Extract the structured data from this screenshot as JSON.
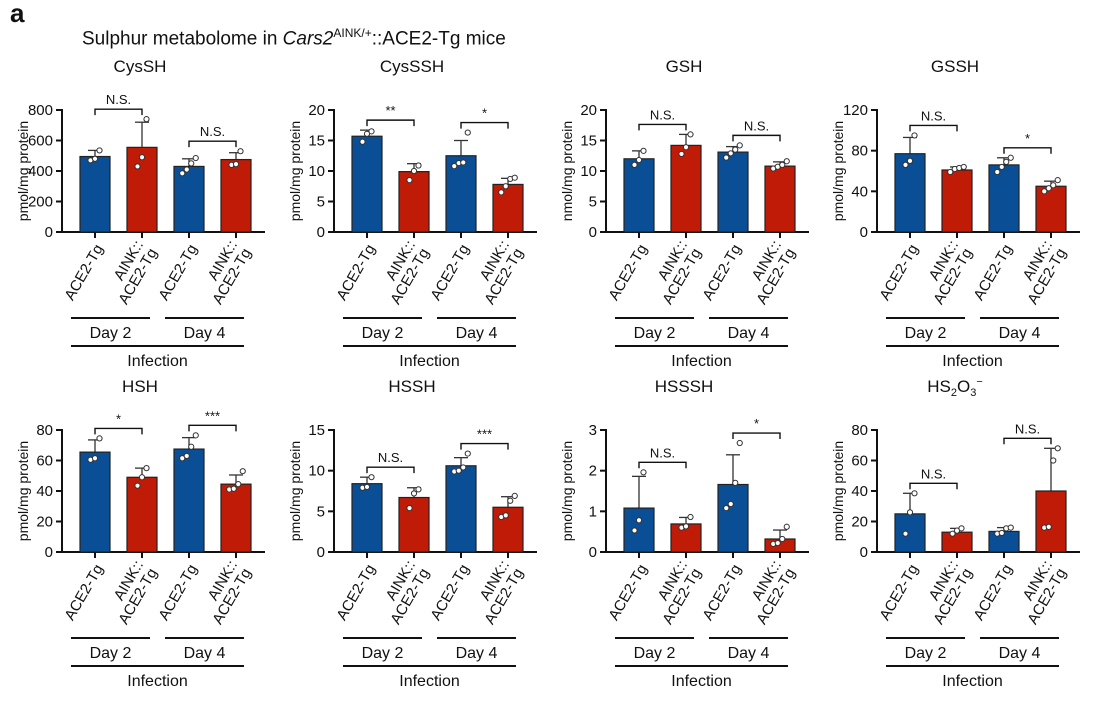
{
  "panel_letter": "a",
  "title": {
    "prefix": "Sulphur metabolome in ",
    "gene": "Cars2",
    "superscript": "AINK/+",
    "suffix": "::ACE2-Tg mice"
  },
  "colors": {
    "control": "#0a4f96",
    "mutant": "#c01b07",
    "axis": "#111111",
    "errorbar": "#333333"
  },
  "chart_data": [
    {
      "type": "bar",
      "title": "CysSH",
      "ylabel": "pmol/mg protein",
      "ylim": [
        0,
        800
      ],
      "yticks": [
        0,
        200,
        400,
        600,
        800
      ],
      "categories": [
        "ACE2-Tg",
        "AINK::ACE2-Tg",
        "ACE2-Tg",
        "AINK::ACE2-Tg"
      ],
      "groups": [
        "Day 2",
        "Day 2",
        "Day 4",
        "Day 4"
      ],
      "means": [
        495,
        555,
        430,
        475
      ],
      "sd": [
        40,
        165,
        50,
        45
      ],
      "points": [
        [
          470,
          480,
          535
        ],
        [
          430,
          490,
          740
        ],
        [
          385,
          410,
          450,
          485
        ],
        [
          440,
          445,
          530
        ]
      ],
      "comparisons": [
        {
          "pair": [
            0,
            1
          ],
          "label": "N.S."
        },
        {
          "pair": [
            2,
            3
          ],
          "label": "N.S."
        }
      ]
    },
    {
      "type": "bar",
      "title": "CysSSH",
      "ylabel": "pmol/mg protein",
      "ylim": [
        0,
        20
      ],
      "yticks": [
        0,
        5,
        10,
        15,
        20
      ],
      "categories": [
        "ACE2-Tg",
        "AINK::ACE2-Tg",
        "ACE2-Tg",
        "AINK::ACE2-Tg"
      ],
      "groups": [
        "Day 2",
        "Day 2",
        "Day 4",
        "Day 4"
      ],
      "means": [
        15.7,
        9.9,
        12.5,
        7.8
      ],
      "sd": [
        1.0,
        1.3,
        2.5,
        1.0
      ],
      "points": [
        [
          14.8,
          16.1,
          16.5
        ],
        [
          8.5,
          10.0,
          10.9
        ],
        [
          10.8,
          11.3,
          11.4,
          16.3
        ],
        [
          6.5,
          7.5,
          8.7,
          8.9
        ]
      ],
      "comparisons": [
        {
          "pair": [
            0,
            1
          ],
          "label": "**"
        },
        {
          "pair": [
            2,
            3
          ],
          "label": "*"
        }
      ]
    },
    {
      "type": "bar",
      "title": "GSH",
      "ylabel": "nmol/mg protein",
      "ylim": [
        0,
        20
      ],
      "yticks": [
        0,
        5,
        10,
        15,
        20
      ],
      "categories": [
        "ACE2-Tg",
        "AINK::ACE2-Tg",
        "ACE2-Tg",
        "AINK::ACE2-Tg"
      ],
      "groups": [
        "Day 2",
        "Day 2",
        "Day 4",
        "Day 4"
      ],
      "means": [
        12.0,
        14.2,
        13.1,
        10.8
      ],
      "sd": [
        1.3,
        1.8,
        0.9,
        0.7
      ],
      "points": [
        [
          11.0,
          11.8,
          13.3
        ],
        [
          12.8,
          13.9,
          16.0
        ],
        [
          12.2,
          12.9,
          13.5,
          14.2
        ],
        [
          10.4,
          10.7,
          11.0,
          11.6
        ]
      ],
      "comparisons": [
        {
          "pair": [
            0,
            1
          ],
          "label": "N.S."
        },
        {
          "pair": [
            2,
            3
          ],
          "label": "N.S."
        }
      ]
    },
    {
      "type": "bar",
      "title": "GSSH",
      "ylabel": "pmol/mg protein",
      "ylim": [
        0,
        120
      ],
      "yticks": [
        0,
        40,
        80,
        120
      ],
      "categories": [
        "ACE2-Tg",
        "AINK::ACE2-Tg",
        "ACE2-Tg",
        "AINK::ACE2-Tg"
      ],
      "groups": [
        "Day 2",
        "Day 2",
        "Day 4",
        "Day 4"
      ],
      "means": [
        77,
        61,
        66,
        45
      ],
      "sd": [
        16,
        3,
        7,
        5
      ],
      "points": [
        [
          66,
          70,
          95
        ],
        [
          59,
          62,
          63,
          64
        ],
        [
          59,
          64,
          69,
          73
        ],
        [
          40,
          43,
          46,
          51
        ]
      ],
      "comparisons": [
        {
          "pair": [
            0,
            1
          ],
          "label": "N.S."
        },
        {
          "pair": [
            2,
            3
          ],
          "label": "*"
        }
      ]
    },
    {
      "type": "bar",
      "title": "HSH",
      "ylabel": "pmol/mg protein",
      "ylim": [
        0,
        80
      ],
      "yticks": [
        0,
        20,
        40,
        60,
        80
      ],
      "categories": [
        "ACE2-Tg",
        "AINK::ACE2-Tg",
        "ACE2-Tg",
        "AINK::ACE2-Tg"
      ],
      "groups": [
        "Day 2",
        "Day 2",
        "Day 4",
        "Day 4"
      ],
      "means": [
        65.5,
        49,
        67.5,
        44.5
      ],
      "sd": [
        8,
        6,
        7.5,
        6
      ],
      "points": [
        [
          60.5,
          61.5,
          74.5
        ],
        [
          43.5,
          49,
          55
        ],
        [
          61.5,
          63,
          69,
          76.5
        ],
        [
          41,
          41.5,
          44.5,
          53
        ]
      ],
      "comparisons": [
        {
          "pair": [
            0,
            1
          ],
          "label": "*"
        },
        {
          "pair": [
            2,
            3
          ],
          "label": "***"
        }
      ]
    },
    {
      "type": "bar",
      "title": "HSSH",
      "ylabel": "pmol/mg protein",
      "ylim": [
        0,
        15
      ],
      "yticks": [
        0,
        5,
        10,
        15
      ],
      "categories": [
        "ACE2-Tg",
        "AINK::ACE2-Tg",
        "ACE2-Tg",
        "AINK::ACE2-Tg"
      ],
      "groups": [
        "Day 2",
        "Day 2",
        "Day 4",
        "Day 4"
      ],
      "means": [
        8.4,
        6.7,
        10.6,
        5.5
      ],
      "sd": [
        0.8,
        1.2,
        1.0,
        1.3
      ],
      "points": [
        [
          7.9,
          8.0,
          9.2
        ],
        [
          5.4,
          7.2,
          7.7
        ],
        [
          9.9,
          10.0,
          10.4,
          12.1
        ],
        [
          4.3,
          4.5,
          6.3,
          6.9
        ]
      ],
      "comparisons": [
        {
          "pair": [
            0,
            1
          ],
          "label": "N.S."
        },
        {
          "pair": [
            2,
            3
          ],
          "label": "***"
        }
      ]
    },
    {
      "type": "bar",
      "title": "HSSSH",
      "ylabel": "pmol/mg protein",
      "ylim": [
        0,
        3
      ],
      "yticks": [
        0,
        1,
        2,
        3
      ],
      "categories": [
        "ACE2-Tg",
        "AINK::ACE2-Tg",
        "ACE2-Tg",
        "AINK::ACE2-Tg"
      ],
      "groups": [
        "Day 2",
        "Day 2",
        "Day 4",
        "Day 4"
      ],
      "means": [
        1.08,
        0.69,
        1.66,
        0.32
      ],
      "sd": [
        0.78,
        0.16,
        0.73,
        0.22
      ],
      "points": [
        [
          0.53,
          0.78,
          1.96
        ],
        [
          0.6,
          0.63,
          0.86
        ],
        [
          1.08,
          1.18,
          1.7,
          2.68
        ],
        [
          0.2,
          0.22,
          0.32,
          0.62
        ]
      ],
      "comparisons": [
        {
          "pair": [
            0,
            1
          ],
          "label": "N.S."
        },
        {
          "pair": [
            2,
            3
          ],
          "label": "*"
        }
      ]
    },
    {
      "type": "bar",
      "title": "HS2O3−",
      "title_parts": {
        "base": "HS",
        "sub1": "2",
        "mid": "O",
        "sub2": "3",
        "sup": "−"
      },
      "ylabel": "pmol/mg protein",
      "ylim": [
        0,
        80
      ],
      "yticks": [
        0,
        20,
        40,
        60,
        80
      ],
      "categories": [
        "ACE2-Tg",
        "AINK::ACE2-Tg",
        "ACE2-Tg",
        "AINK::ACE2-Tg"
      ],
      "groups": [
        "Day 2",
        "Day 2",
        "Day 4",
        "Day 4"
      ],
      "means": [
        25,
        13,
        13.5,
        40
      ],
      "sd": [
        13.5,
        2.5,
        2.5,
        28
      ],
      "points": [
        [
          12,
          26,
          38.5
        ],
        [
          12,
          14,
          15.5
        ],
        [
          12,
          12.5,
          15.5,
          16
        ],
        [
          16,
          16.5,
          60,
          68
        ]
      ],
      "comparisons": [
        {
          "pair": [
            0,
            1
          ],
          "label": "N.S."
        },
        {
          "pair": [
            2,
            3
          ],
          "label": "N.S."
        }
      ]
    }
  ],
  "xaxis": {
    "tick_labels": [
      [
        "ACE2-Tg"
      ],
      [
        "AINK::",
        "ACE2-Tg"
      ],
      [
        "ACE2-Tg"
      ],
      [
        "AINK::",
        "ACE2-Tg"
      ]
    ],
    "group_labels": [
      "Day 2",
      "Day 4"
    ],
    "super_label": "Infection"
  }
}
